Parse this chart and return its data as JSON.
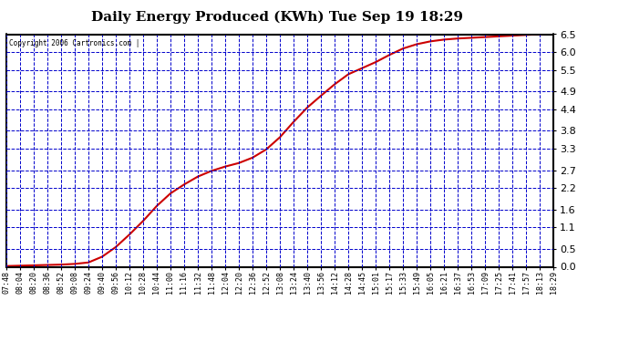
{
  "title": "Daily Energy Produced (KWh) Tue Sep 19 18:29",
  "copyright_text": "Copyright 2006 Cartronics.com |",
  "background_color": "#ffffff",
  "plot_bg_color": "#ffffff",
  "grid_color": "#0000cc",
  "line_color": "#cc0000",
  "yticks": [
    0.0,
    0.5,
    1.1,
    1.6,
    2.2,
    2.7,
    3.3,
    3.8,
    4.4,
    4.9,
    5.5,
    6.0,
    6.5
  ],
  "ymax": 6.5,
  "ymin": 0.0,
  "x_labels": [
    "07:48",
    "08:04",
    "08:20",
    "08:36",
    "08:52",
    "09:08",
    "09:24",
    "09:40",
    "09:56",
    "10:12",
    "10:28",
    "10:44",
    "11:00",
    "11:16",
    "11:32",
    "11:48",
    "12:04",
    "12:20",
    "12:36",
    "12:52",
    "13:08",
    "13:24",
    "13:40",
    "13:56",
    "14:12",
    "14:28",
    "14:45",
    "15:01",
    "15:17",
    "15:33",
    "15:49",
    "16:05",
    "16:21",
    "16:37",
    "16:53",
    "17:09",
    "17:25",
    "17:41",
    "17:57",
    "18:13",
    "18:29"
  ],
  "curve_y": [
    0.02,
    0.03,
    0.04,
    0.05,
    0.06,
    0.08,
    0.12,
    0.28,
    0.55,
    0.9,
    1.28,
    1.7,
    2.05,
    2.3,
    2.52,
    2.68,
    2.8,
    2.9,
    3.05,
    3.28,
    3.62,
    4.05,
    4.45,
    4.78,
    5.1,
    5.38,
    5.55,
    5.72,
    5.92,
    6.1,
    6.22,
    6.3,
    6.35,
    6.38,
    6.4,
    6.42,
    6.44,
    6.46,
    6.48,
    6.5,
    6.52
  ]
}
